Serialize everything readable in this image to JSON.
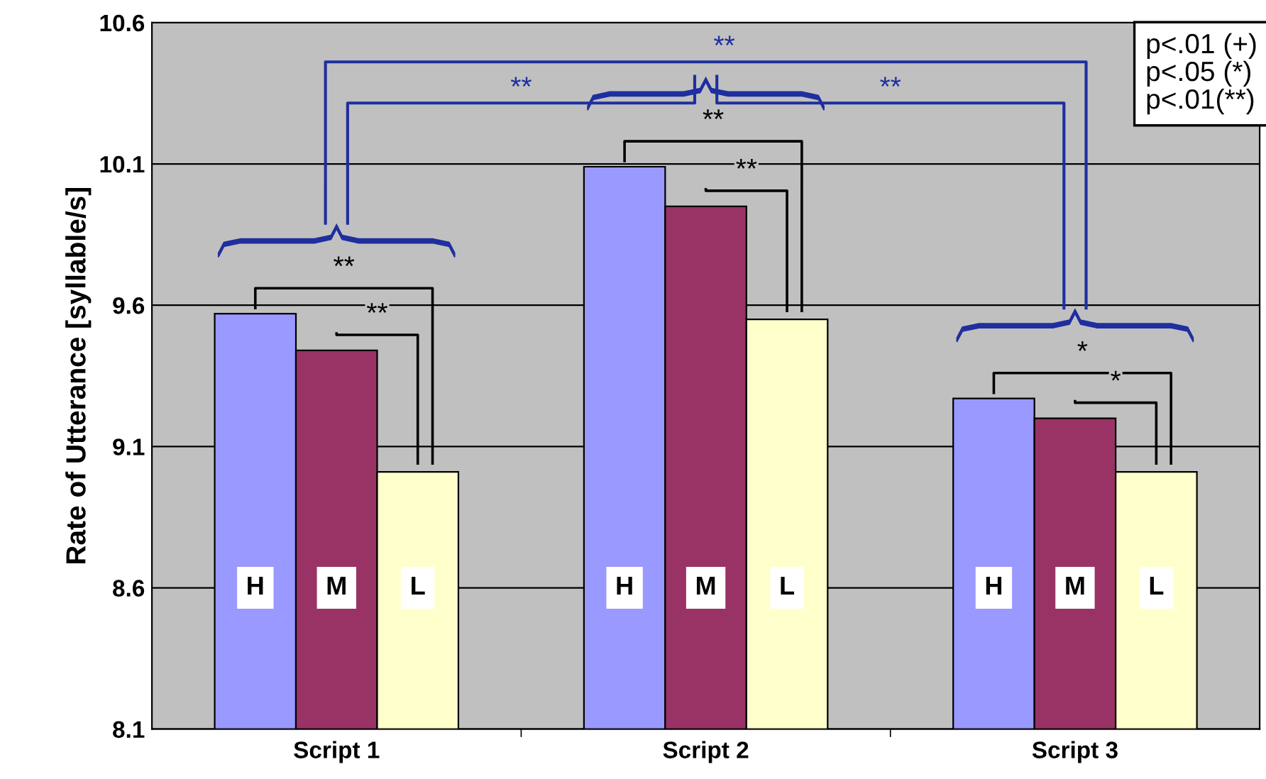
{
  "chart_data": {
    "type": "bar",
    "ylabel": "Rate of Utterance [syllable/s]",
    "categories": [
      "Script 1",
      "Script 2",
      "Script 3"
    ],
    "series": [
      {
        "name": "H",
        "color": "#9999ff",
        "values": [
          9.57,
          10.09,
          9.27
        ]
      },
      {
        "name": "M",
        "color": "#993366",
        "values": [
          9.44,
          9.95,
          9.2
        ]
      },
      {
        "name": "L",
        "color": "#ffffcc",
        "values": [
          9.01,
          9.55,
          9.01
        ]
      }
    ],
    "ylim": [
      8.1,
      10.6
    ],
    "yticks": [
      8.1,
      8.6,
      9.1,
      9.6,
      10.1,
      10.6
    ],
    "grid": "y",
    "annotations": [
      "p<.01 (+)",
      "p<.05 (*)",
      "p<.01(**)",
      "**",
      "**",
      "**",
      "**",
      "*",
      "*",
      "**",
      "**",
      "**"
    ]
  }
}
